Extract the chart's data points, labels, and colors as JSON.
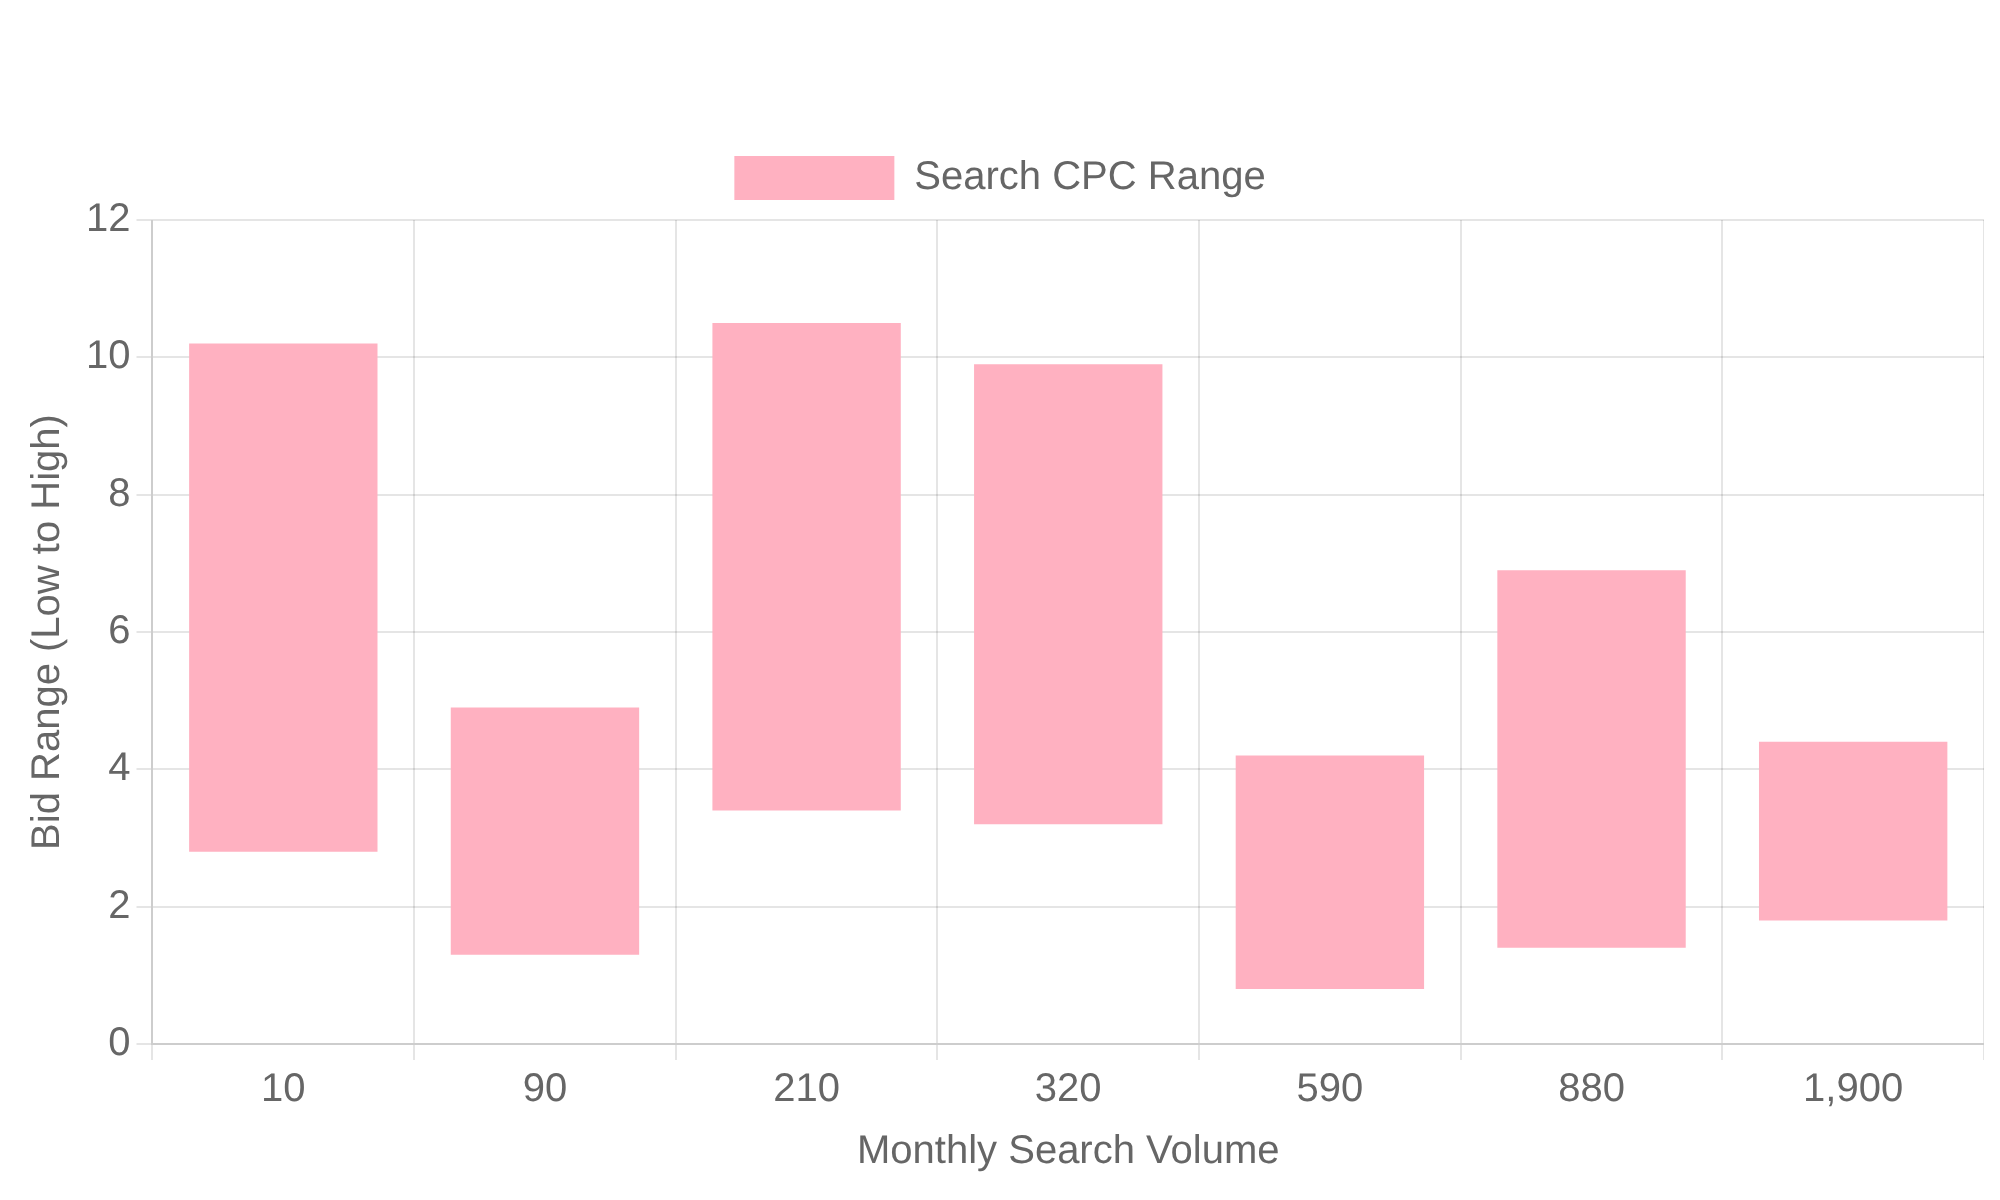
{
  "chart_data": {
    "type": "bar",
    "xlabel": "Monthly Search Volume",
    "ylabel": "Bid Range (Low to High)",
    "categories": [
      "10",
      "90",
      "210",
      "320",
      "590",
      "880",
      "1,900"
    ],
    "series": [
      {
        "name": "Search CPC Range",
        "color": "#ffb1c1",
        "values": [
          7.4,
          3.6,
          7.1,
          6.7,
          3.4,
          5.5,
          2.6
        ],
        "base": [
          2.8,
          1.3,
          3.4,
          3.2,
          0.8,
          1.4,
          1.8
        ]
      }
    ],
    "ylim": [
      0,
      12
    ],
    "yticks": [
      0,
      2,
      4,
      6,
      8,
      10,
      12
    ],
    "grid": true,
    "legend": "top"
  }
}
